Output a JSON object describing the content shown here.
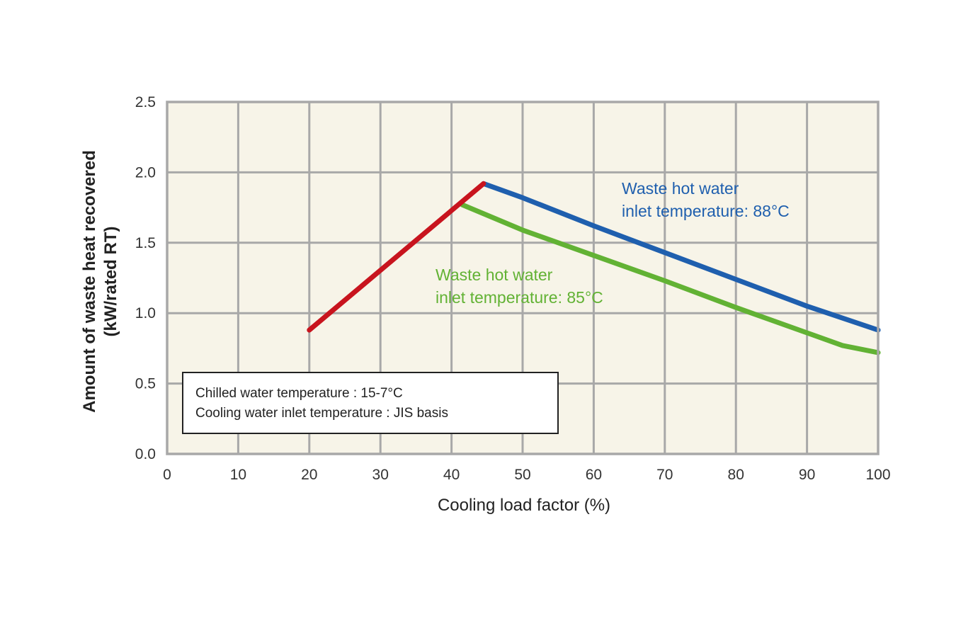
{
  "chart_data": {
    "type": "line",
    "title": "",
    "xlabel": "Cooling load factor (%)",
    "ylabel": "Amount  of waste heat recovered",
    "ylabel_sub": "(kW/rated RT)",
    "xlim": [
      0,
      100
    ],
    "ylim": [
      0.0,
      2.5
    ],
    "x_ticks": [
      "0",
      "10",
      "20",
      "30",
      "40",
      "50",
      "60",
      "70",
      "80",
      "90",
      "100"
    ],
    "y_ticks": [
      "0.0",
      "0.5",
      "1.0",
      "1.5",
      "2.0",
      "2.5"
    ],
    "grid": true,
    "plot_background": "#f7f4e8",
    "grid_color": "#a8a8a8",
    "series": [
      {
        "color": "#c8141e",
        "points": [
          [
            20,
            0.88
          ],
          [
            44.5,
            1.92
          ]
        ]
      },
      {
        "name_lines": [
          "Waste hot water",
          "inlet temperature: 88°C"
        ],
        "color": "#1f5fae",
        "points": [
          [
            44.5,
            1.92
          ],
          [
            50,
            1.82
          ],
          [
            60,
            1.62
          ],
          [
            70,
            1.43
          ],
          [
            80,
            1.24
          ],
          [
            90,
            1.05
          ],
          [
            100,
            0.88
          ]
        ]
      },
      {
        "name_lines": [
          "Waste hot water",
          "inlet temperature: 85°C"
        ],
        "color": "#62b234",
        "points": [
          [
            41.5,
            1.77
          ],
          [
            50,
            1.59
          ],
          [
            60,
            1.41
          ],
          [
            70,
            1.23
          ],
          [
            80,
            1.04
          ],
          [
            90,
            0.86
          ],
          [
            95,
            0.77
          ],
          [
            100,
            0.72
          ]
        ]
      }
    ],
    "annotation": {
      "lines": [
        "Chilled water temperature : 15-7°C",
        "Cooling water inlet temperature : JIS basis"
      ],
      "placement": "bottom-left"
    }
  }
}
